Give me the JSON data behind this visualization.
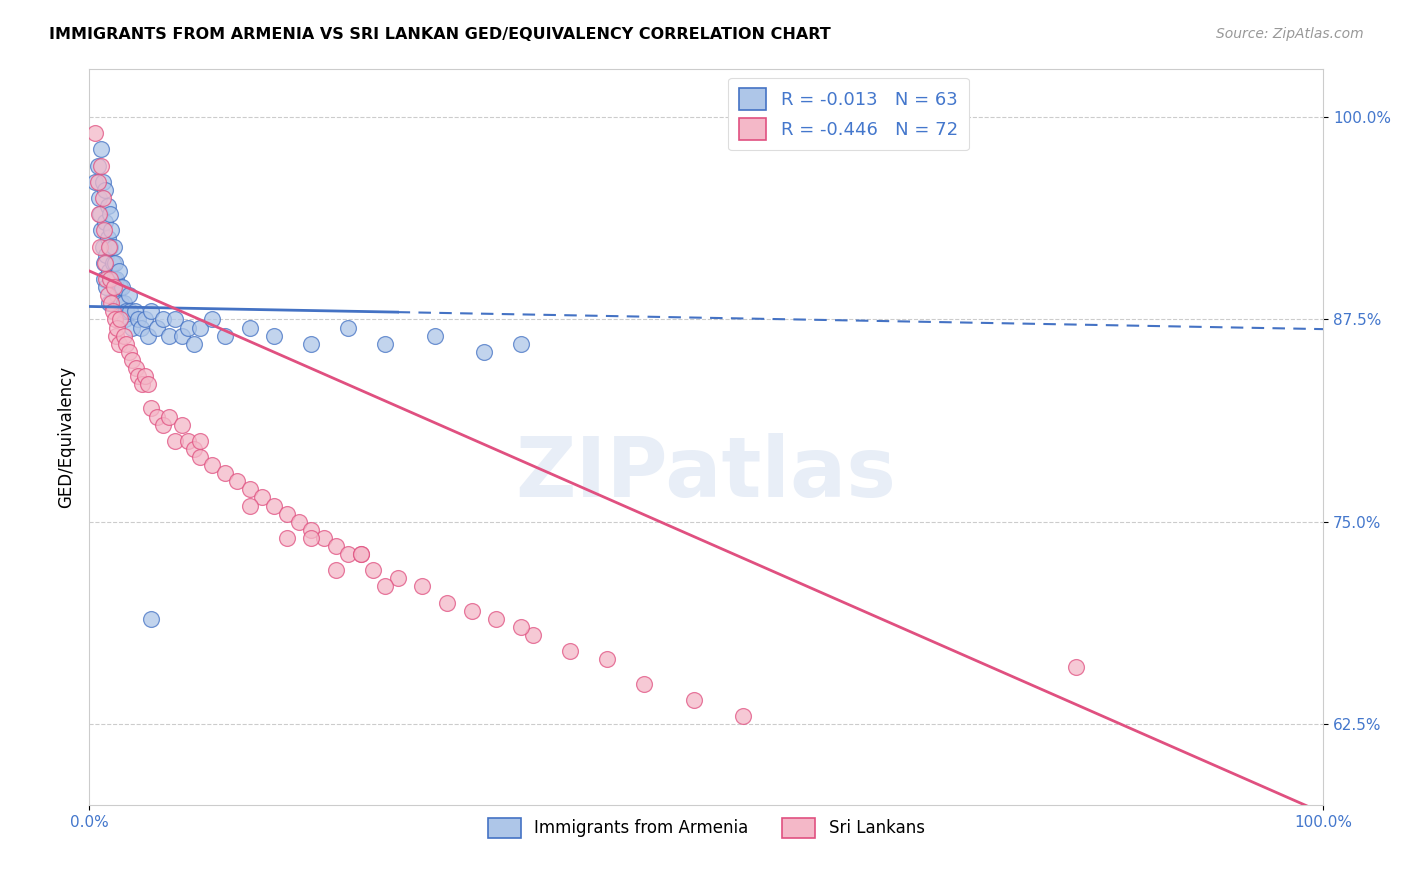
{
  "title": "IMMIGRANTS FROM ARMENIA VS SRI LANKAN GED/EQUIVALENCY CORRELATION CHART",
  "source_text": "Source: ZipAtlas.com",
  "ylabel": "GED/Equivalency",
  "xlabel": "",
  "xlim": [
    0.0,
    1.0
  ],
  "ylim": [
    0.575,
    1.03
  ],
  "yticks": [
    0.625,
    0.75,
    0.875,
    1.0
  ],
  "ytick_labels": [
    "62.5%",
    "75.0%",
    "87.5%",
    "100.0%"
  ],
  "xticks": [
    0.0,
    1.0
  ],
  "xtick_labels": [
    "0.0%",
    "100.0%"
  ],
  "legend_bottom": [
    {
      "label": "Immigrants from Armenia",
      "color": "#aec6e8"
    },
    {
      "label": "Sri Lankans",
      "color": "#f4b8c8"
    }
  ],
  "r_armenia": -0.013,
  "n_armenia": 63,
  "r_srilankan": -0.446,
  "n_srilankan": 72,
  "scatter_blue_color": "#aec6e8",
  "scatter_pink_color": "#f4b8c8",
  "line_blue_color": "#4472c4",
  "line_pink_color": "#e05080",
  "background_color": "#ffffff",
  "armenia_x": [
    0.005,
    0.007,
    0.008,
    0.009,
    0.01,
    0.01,
    0.011,
    0.011,
    0.012,
    0.012,
    0.013,
    0.013,
    0.014,
    0.014,
    0.015,
    0.015,
    0.016,
    0.016,
    0.017,
    0.017,
    0.018,
    0.018,
    0.019,
    0.02,
    0.02,
    0.021,
    0.022,
    0.023,
    0.024,
    0.025,
    0.026,
    0.027,
    0.028,
    0.029,
    0.03,
    0.032,
    0.033,
    0.035,
    0.037,
    0.04,
    0.042,
    0.045,
    0.048,
    0.05,
    0.055,
    0.06,
    0.065,
    0.07,
    0.075,
    0.08,
    0.085,
    0.09,
    0.1,
    0.11,
    0.13,
    0.15,
    0.18,
    0.21,
    0.24,
    0.28,
    0.32,
    0.35,
    0.05
  ],
  "armenia_y": [
    0.96,
    0.97,
    0.95,
    0.94,
    0.93,
    0.98,
    0.96,
    0.92,
    0.91,
    0.9,
    0.955,
    0.935,
    0.915,
    0.895,
    0.945,
    0.925,
    0.905,
    0.885,
    0.94,
    0.92,
    0.9,
    0.93,
    0.91,
    0.92,
    0.9,
    0.91,
    0.9,
    0.89,
    0.905,
    0.895,
    0.885,
    0.895,
    0.885,
    0.875,
    0.88,
    0.89,
    0.88,
    0.87,
    0.88,
    0.875,
    0.87,
    0.875,
    0.865,
    0.88,
    0.87,
    0.875,
    0.865,
    0.875,
    0.865,
    0.87,
    0.86,
    0.87,
    0.875,
    0.865,
    0.87,
    0.865,
    0.86,
    0.87,
    0.86,
    0.865,
    0.855,
    0.86,
    0.69
  ],
  "srilankan_x": [
    0.005,
    0.007,
    0.008,
    0.009,
    0.01,
    0.011,
    0.012,
    0.013,
    0.014,
    0.015,
    0.016,
    0.017,
    0.018,
    0.019,
    0.02,
    0.021,
    0.022,
    0.023,
    0.024,
    0.025,
    0.028,
    0.03,
    0.032,
    0.035,
    0.038,
    0.04,
    0.043,
    0.045,
    0.048,
    0.05,
    0.055,
    0.06,
    0.065,
    0.07,
    0.075,
    0.08,
    0.085,
    0.09,
    0.1,
    0.11,
    0.12,
    0.13,
    0.14,
    0.15,
    0.16,
    0.17,
    0.18,
    0.19,
    0.2,
    0.21,
    0.22,
    0.23,
    0.25,
    0.27,
    0.29,
    0.31,
    0.33,
    0.36,
    0.39,
    0.42,
    0.45,
    0.49,
    0.53,
    0.22,
    0.13,
    0.16,
    0.2,
    0.24,
    0.35,
    0.18,
    0.09,
    0.8
  ],
  "srilankan_y": [
    0.99,
    0.96,
    0.94,
    0.92,
    0.97,
    0.95,
    0.93,
    0.91,
    0.9,
    0.89,
    0.92,
    0.9,
    0.885,
    0.88,
    0.895,
    0.875,
    0.865,
    0.87,
    0.86,
    0.875,
    0.865,
    0.86,
    0.855,
    0.85,
    0.845,
    0.84,
    0.835,
    0.84,
    0.835,
    0.82,
    0.815,
    0.81,
    0.815,
    0.8,
    0.81,
    0.8,
    0.795,
    0.79,
    0.785,
    0.78,
    0.775,
    0.77,
    0.765,
    0.76,
    0.755,
    0.75,
    0.745,
    0.74,
    0.735,
    0.73,
    0.73,
    0.72,
    0.715,
    0.71,
    0.7,
    0.695,
    0.69,
    0.68,
    0.67,
    0.665,
    0.65,
    0.64,
    0.63,
    0.73,
    0.76,
    0.74,
    0.72,
    0.71,
    0.685,
    0.74,
    0.8,
    0.66
  ],
  "line_armenia_x0": 0.0,
  "line_armenia_x1": 1.0,
  "line_armenia_y0": 0.883,
  "line_armenia_y1": 0.869,
  "line_srilankan_x0": 0.0,
  "line_srilankan_x1": 1.0,
  "line_srilankan_y0": 0.905,
  "line_srilankan_y1": 0.57
}
